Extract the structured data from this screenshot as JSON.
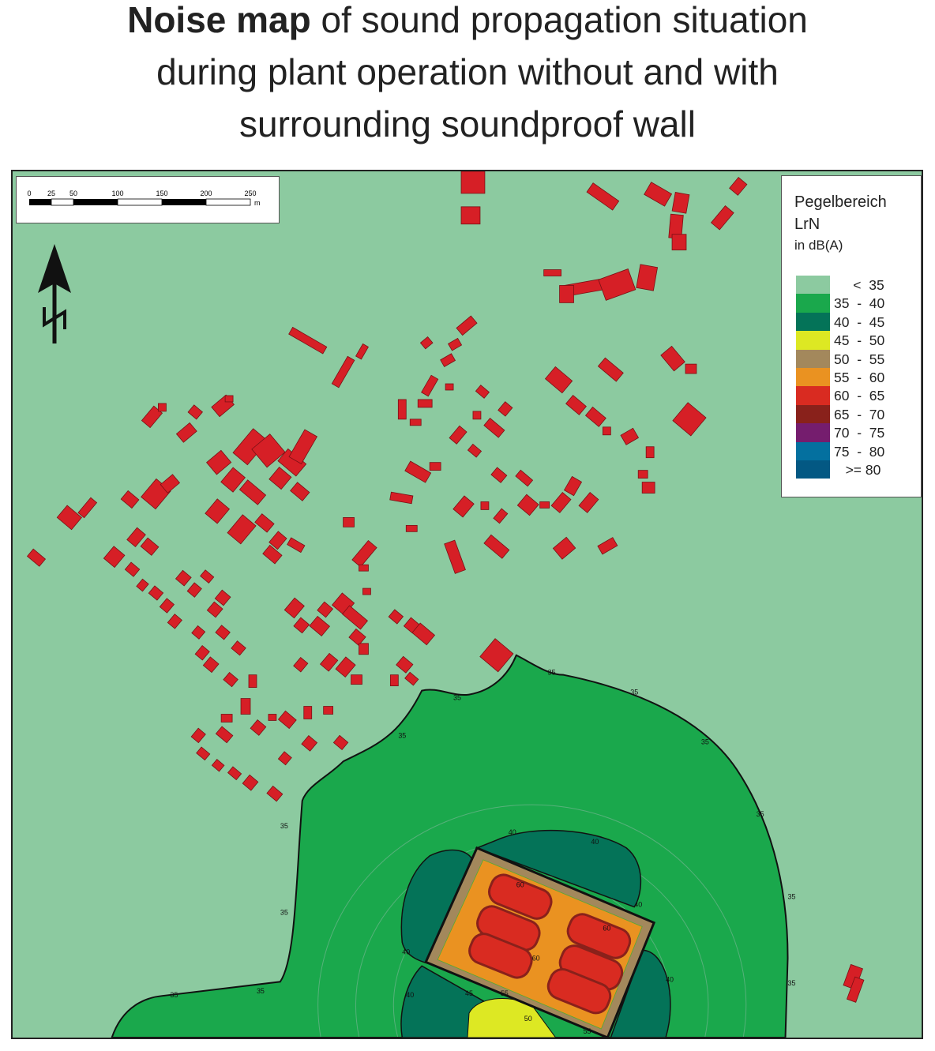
{
  "title": {
    "bold": "Noise map",
    "rest1": " of sound propagation situation",
    "line2": "during plant operation without and with",
    "line3": "surrounding soundproof wall"
  },
  "scale_bar": {
    "ticks": [
      "0",
      "25",
      "50",
      "100",
      "150",
      "200",
      "250"
    ],
    "unit": "m"
  },
  "north_arrow": {
    "label": "N",
    "icon": "north-arrow-icon"
  },
  "legend": {
    "title1": "Pegelbereich",
    "title2": "LrN",
    "title3": "in dB(A)",
    "classes": [
      {
        "label": "     <  35",
        "color": "#8ccaa0"
      },
      {
        "label": "35  -  40",
        "color": "#1aa84c"
      },
      {
        "label": "40  -  45",
        "color": "#047358"
      },
      {
        "label": "45  -  50",
        "color": "#dde823"
      },
      {
        "label": "50  -  55",
        "color": "#a3885c"
      },
      {
        "label": "55  -  60",
        "color": "#ea9221"
      },
      {
        "label": "60  -  65",
        "color": "#d92b21"
      },
      {
        "label": "65  -  70",
        "color": "#89211b"
      },
      {
        "label": "70  -  75",
        "color": "#751d6e"
      },
      {
        "label": "75  -  80",
        "color": "#04709f"
      },
      {
        "label": "   >= 80",
        "color": "#035883"
      }
    ]
  },
  "contour_labels": {
    "c35": "35",
    "c40": "40",
    "c45": "45",
    "c50": "50",
    "c55": "55",
    "c60": "60"
  },
  "building_color": "#d61f26"
}
